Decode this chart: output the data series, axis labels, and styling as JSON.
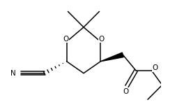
{
  "bg_color": "#ffffff",
  "line_color": "#000000",
  "lw": 1.1,
  "figsize": [
    2.55,
    1.53
  ],
  "dpi": 100,
  "xlim": [
    -1.0,
    4.5
  ],
  "ylim": [
    -1.8,
    2.2
  ]
}
